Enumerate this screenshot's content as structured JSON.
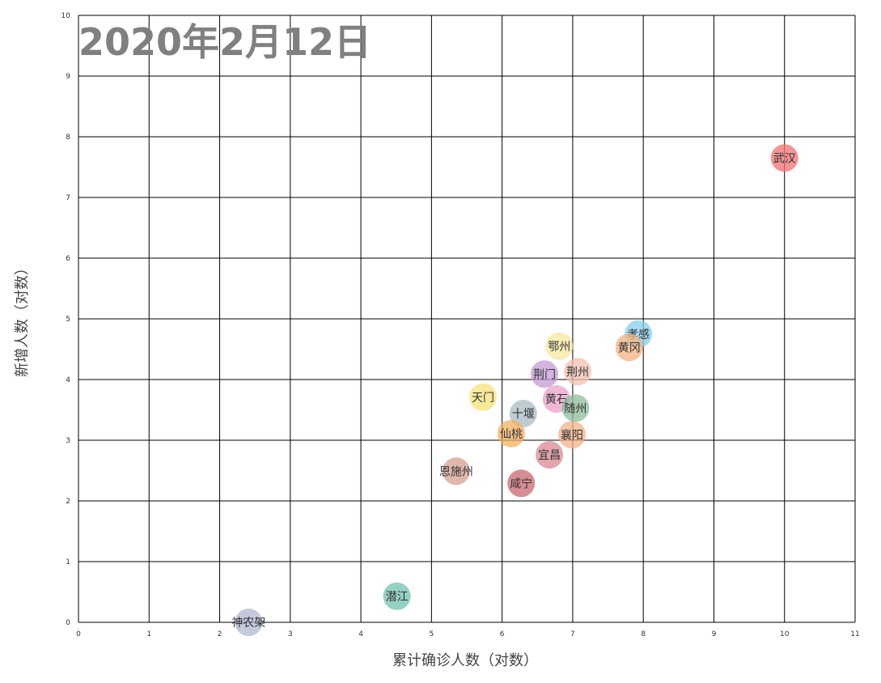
{
  "chart_data": {
    "type": "scatter",
    "title": "2020年2月12日",
    "x_label": "累计确诊人数（对数）",
    "y_label": "新增人数（对数）",
    "xlim": [
      0,
      11
    ],
    "ylim": [
      0,
      10
    ],
    "xticks": [
      0,
      1,
      2,
      3,
      4,
      5,
      6,
      7,
      8,
      9,
      10,
      11
    ],
    "yticks": [
      0,
      1,
      2,
      3,
      4,
      5,
      6,
      7,
      8,
      9,
      10
    ],
    "grid": true,
    "series": [
      {
        "name": "武汉",
        "color": "#f07070",
        "x": [
          10.0
        ],
        "values": [
          7.65
        ]
      },
      {
        "name": "孝感",
        "color": "#87ceeb",
        "x": [
          7.93
        ],
        "values": [
          4.75
        ]
      },
      {
        "name": "黄冈",
        "color": "#f4b183",
        "x": [
          7.8
        ],
        "values": [
          4.53
        ]
      },
      {
        "name": "鄂州",
        "color": "#f5eaa0",
        "x": [
          6.81
        ],
        "values": [
          4.55
        ]
      },
      {
        "name": "荆州",
        "color": "#f2c0b0",
        "x": [
          7.07
        ],
        "values": [
          4.13
        ]
      },
      {
        "name": "荆门",
        "color": "#c39bd3",
        "x": [
          6.6
        ],
        "values": [
          4.09
        ]
      },
      {
        "name": "黄石",
        "color": "#e8a0c8",
        "x": [
          6.77
        ],
        "values": [
          3.68
        ]
      },
      {
        "name": "随州",
        "color": "#8fbc9a",
        "x": [
          7.04
        ],
        "values": [
          3.53
        ]
      },
      {
        "name": "天门",
        "color": "#f7e27a",
        "x": [
          5.73
        ],
        "values": [
          3.71
        ]
      },
      {
        "name": "十堰",
        "color": "#a9bcc4",
        "x": [
          6.3
        ],
        "values": [
          3.44
        ]
      },
      {
        "name": "仙桃",
        "color": "#f0b060",
        "x": [
          6.13
        ],
        "values": [
          3.11
        ]
      },
      {
        "name": "襄阳",
        "color": "#f3b08a",
        "x": [
          6.99
        ],
        "values": [
          3.09
        ]
      },
      {
        "name": "宜昌",
        "color": "#d98890",
        "x": [
          6.67
        ],
        "values": [
          2.76
        ]
      },
      {
        "name": "恩施州",
        "color": "#d4a090",
        "x": [
          5.35
        ],
        "values": [
          2.49
        ]
      },
      {
        "name": "咸宁",
        "color": "#c86870",
        "x": [
          6.27
        ],
        "values": [
          2.29
        ]
      },
      {
        "name": "潜江",
        "color": "#70c0b0",
        "x": [
          4.51
        ],
        "values": [
          0.43
        ]
      },
      {
        "name": "神农架",
        "color": "#b0b8d0",
        "x": [
          2.41
        ],
        "values": [
          0
        ]
      }
    ]
  }
}
